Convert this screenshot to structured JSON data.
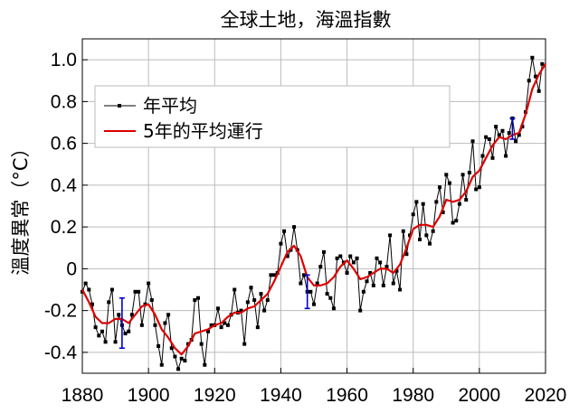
{
  "chart_data": {
    "type": "line",
    "title": "全球土地，海溫指數",
    "xlabel": "",
    "ylabel": "溫度異常（°C）",
    "xlim": [
      1880,
      2020
    ],
    "ylim": [
      -0.5,
      1.1
    ],
    "x_ticks": [
      "1880",
      "1900",
      "1920",
      "1940",
      "1960",
      "1980",
      "2000",
      "2020"
    ],
    "y_ticks": [
      "-0.4",
      "-0.2",
      "0",
      "0.2",
      "0.4",
      "0.6",
      "0.8",
      "1.0"
    ],
    "grid": true,
    "legend_position": "upper-left",
    "colors": {
      "annual": "#000000",
      "smoothed": "#dd0000",
      "error_bars": "#0000cc",
      "grid": "#bbbbbb"
    },
    "series": [
      {
        "name": "年平均",
        "x": [
          1880,
          1881,
          1882,
          1883,
          1884,
          1885,
          1886,
          1887,
          1888,
          1889,
          1890,
          1891,
          1892,
          1893,
          1894,
          1895,
          1896,
          1897,
          1898,
          1899,
          1900,
          1901,
          1902,
          1903,
          1904,
          1905,
          1906,
          1907,
          1908,
          1909,
          1910,
          1911,
          1912,
          1913,
          1914,
          1915,
          1916,
          1917,
          1918,
          1919,
          1920,
          1921,
          1922,
          1923,
          1924,
          1925,
          1926,
          1927,
          1928,
          1929,
          1930,
          1931,
          1932,
          1933,
          1934,
          1935,
          1936,
          1937,
          1938,
          1939,
          1940,
          1941,
          1942,
          1943,
          1944,
          1945,
          1946,
          1947,
          1948,
          1949,
          1950,
          1951,
          1952,
          1953,
          1954,
          1955,
          1956,
          1957,
          1958,
          1959,
          1960,
          1961,
          1962,
          1963,
          1964,
          1965,
          1966,
          1967,
          1968,
          1969,
          1970,
          1971,
          1972,
          1973,
          1974,
          1975,
          1976,
          1977,
          1978,
          1979,
          1980,
          1981,
          1982,
          1983,
          1984,
          1985,
          1986,
          1987,
          1988,
          1989,
          1990,
          1991,
          1992,
          1993,
          1994,
          1995,
          1996,
          1997,
          1998,
          1999,
          2000,
          2001,
          2002,
          2003,
          2004,
          2005,
          2006,
          2007,
          2008,
          2009,
          2010,
          2011,
          2012,
          2013,
          2014,
          2015,
          2016,
          2017,
          2018,
          2019
        ],
        "values": [
          -0.11,
          -0.07,
          -0.1,
          -0.17,
          -0.28,
          -0.32,
          -0.3,
          -0.35,
          -0.16,
          -0.1,
          -0.35,
          -0.22,
          -0.27,
          -0.31,
          -0.3,
          -0.22,
          -0.11,
          -0.11,
          -0.27,
          -0.17,
          -0.07,
          -0.15,
          -0.27,
          -0.37,
          -0.46,
          -0.26,
          -0.22,
          -0.38,
          -0.42,
          -0.48,
          -0.43,
          -0.44,
          -0.36,
          -0.34,
          -0.15,
          -0.14,
          -0.36,
          -0.46,
          -0.3,
          -0.27,
          -0.27,
          -0.19,
          -0.28,
          -0.26,
          -0.27,
          -0.22,
          -0.1,
          -0.21,
          -0.2,
          -0.36,
          -0.16,
          -0.09,
          -0.15,
          -0.28,
          -0.12,
          -0.2,
          -0.15,
          -0.03,
          -0.03,
          -0.02,
          0.12,
          0.18,
          0.06,
          0.09,
          0.2,
          0.09,
          -0.07,
          -0.03,
          -0.11,
          -0.11,
          -0.17,
          -0.07,
          0.01,
          0.08,
          -0.12,
          -0.14,
          -0.19,
          0.05,
          0.06,
          0.03,
          -0.02,
          0.06,
          0.03,
          0.05,
          -0.2,
          -0.11,
          -0.06,
          -0.02,
          -0.08,
          0.05,
          0.03,
          -0.08,
          0.01,
          0.16,
          -0.07,
          -0.01,
          -0.1,
          0.18,
          0.07,
          0.16,
          0.26,
          0.32,
          0.14,
          0.31,
          0.16,
          0.12,
          0.18,
          0.32,
          0.39,
          0.27,
          0.45,
          0.41,
          0.22,
          0.23,
          0.31,
          0.45,
          0.33,
          0.46,
          0.61,
          0.38,
          0.39,
          0.54,
          0.63,
          0.62,
          0.53,
          0.68,
          0.64,
          0.66,
          0.54,
          0.65,
          0.72,
          0.61,
          0.64,
          0.68,
          0.75,
          0.9,
          1.01,
          0.92,
          0.85,
          0.98
        ]
      },
      {
        "name": "5年的平均運行",
        "x": [
          1880,
          1882,
          1884,
          1886,
          1888,
          1890,
          1892,
          1894,
          1896,
          1898,
          1900,
          1902,
          1904,
          1906,
          1908,
          1910,
          1912,
          1914,
          1916,
          1918,
          1920,
          1922,
          1924,
          1926,
          1928,
          1930,
          1932,
          1934,
          1936,
          1938,
          1940,
          1942,
          1944,
          1946,
          1948,
          1950,
          1952,
          1954,
          1956,
          1958,
          1960,
          1962,
          1964,
          1966,
          1968,
          1970,
          1972,
          1974,
          1976,
          1978,
          1980,
          1982,
          1984,
          1986,
          1988,
          1990,
          1992,
          1994,
          1996,
          1998,
          2000,
          2002,
          2004,
          2006,
          2008,
          2010,
          2012,
          2014,
          2016,
          2018,
          2020
        ],
        "values": [
          -0.1,
          -0.16,
          -0.23,
          -0.26,
          -0.26,
          -0.24,
          -0.24,
          -0.26,
          -0.22,
          -0.18,
          -0.17,
          -0.22,
          -0.29,
          -0.33,
          -0.38,
          -0.41,
          -0.37,
          -0.31,
          -0.3,
          -0.29,
          -0.27,
          -0.26,
          -0.23,
          -0.21,
          -0.21,
          -0.19,
          -0.18,
          -0.15,
          -0.12,
          -0.06,
          0.01,
          0.08,
          0.11,
          0.06,
          -0.04,
          -0.08,
          -0.08,
          -0.07,
          -0.04,
          0.01,
          0.04,
          0.0,
          -0.05,
          -0.04,
          -0.02,
          0.0,
          0.0,
          -0.02,
          0.02,
          0.1,
          0.19,
          0.21,
          0.21,
          0.2,
          0.25,
          0.33,
          0.32,
          0.33,
          0.37,
          0.44,
          0.47,
          0.53,
          0.59,
          0.63,
          0.62,
          0.64,
          0.65,
          0.74,
          0.86,
          0.93,
          0.98
        ]
      }
    ],
    "error_bars": [
      {
        "x": 1892,
        "low": -0.38,
        "high": -0.14
      },
      {
        "x": 1948,
        "low": -0.19,
        "high": -0.03
      },
      {
        "x": 2010,
        "low": 0.62,
        "high": 0.72
      }
    ]
  }
}
